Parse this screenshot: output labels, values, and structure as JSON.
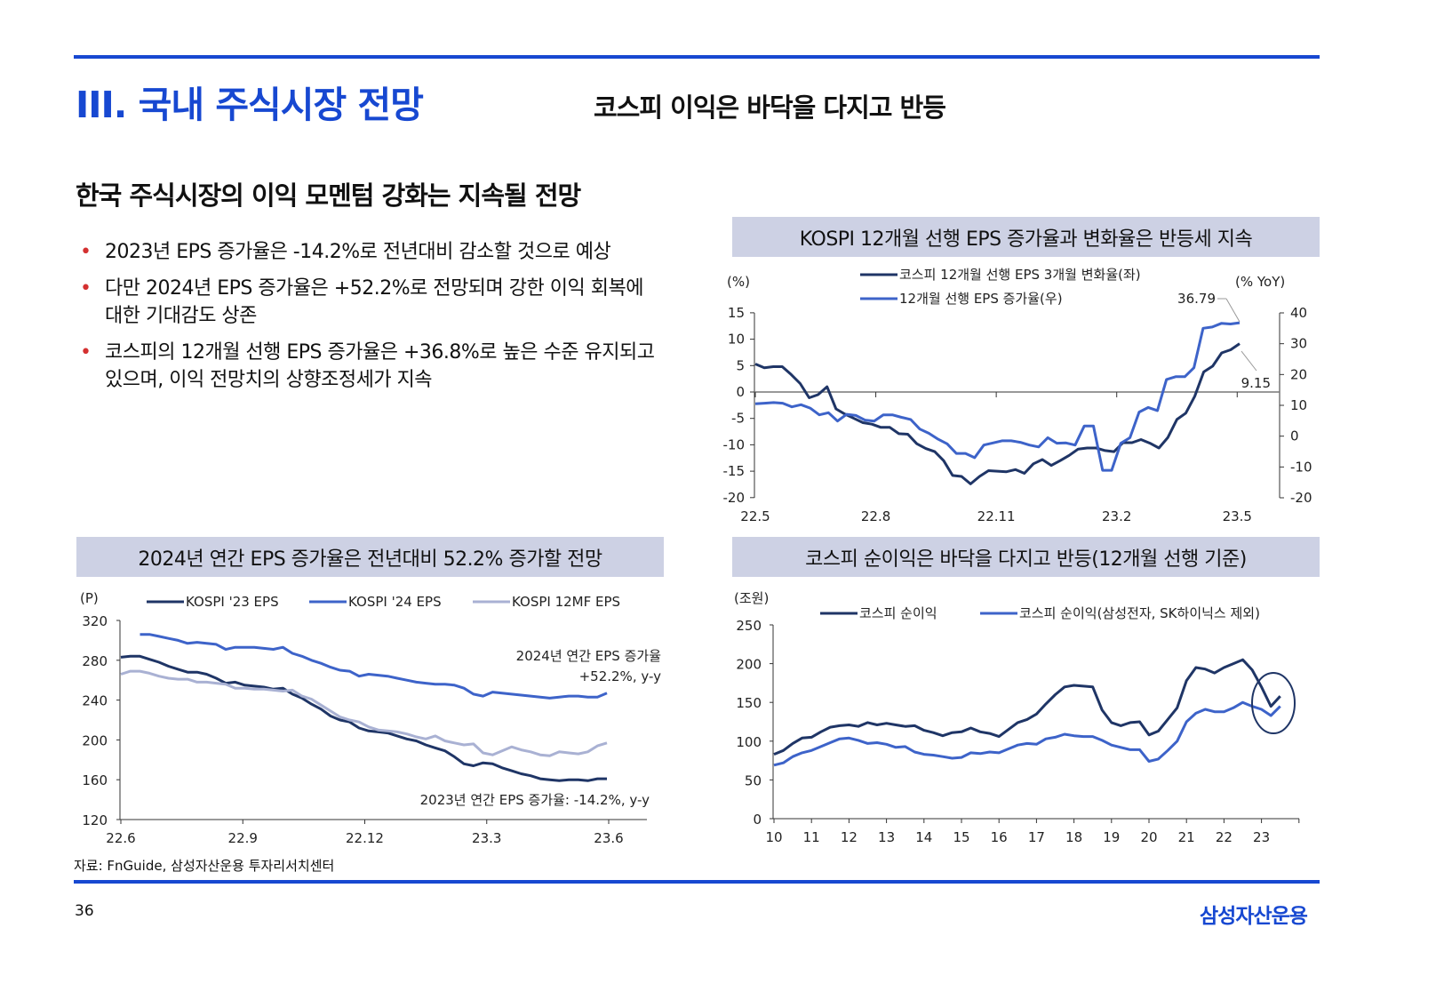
{
  "header": {
    "section_title": "III. 국내 주식시장 전망",
    "subtitle": "코스피 이익은 바닥을 다지고 반등"
  },
  "main": {
    "heading": "한국 주식시장의 이익 모멘텀 강화는 지속될 전망",
    "bullets": [
      "2023년 EPS 증가율은 -14.2%로 전년대비 감소할 것으로 예상",
      "다만 2024년 EPS 증가율은 +52.2%로 전망되며 강한 이익 회복에 대한 기대감도 상존",
      "코스피의 12개월 선행 EPS 증가율은 +36.8%로 높은 수준 유지되고 있으며, 이익 전망치의 상향조정세가 지속"
    ],
    "bullet_marker": "•"
  },
  "footer": {
    "source": "자료: FnGuide, 삼성자산운용 투자리서치센터",
    "page_number": "36",
    "logo": "삼성자산운용"
  },
  "colors": {
    "accent": "#1748d1",
    "dark_series": "#1f3566",
    "blue_series": "#3d63c9",
    "light_series": "#a9b1d3",
    "bar_bg": "#cdd1e4"
  },
  "chart_data": [
    {
      "type": "line",
      "title": "KOSPI 12개월 선행 EPS 증가율과 변화율은 반등세 지속",
      "ylabel": "(%)",
      "ylabel_right": "(% YoY)",
      "xticks": [
        "22.5",
        "22.8",
        "22.11",
        "23.2",
        "23.5"
      ],
      "ylim": [
        -20,
        15
      ],
      "yticks": [
        "15",
        "10",
        "5",
        "0",
        "-5",
        "-10",
        "-15",
        "-20"
      ],
      "ylim_right": [
        -20,
        40
      ],
      "yticks_right": [
        "40",
        "30",
        "20",
        "10",
        "0",
        "-10",
        "-20"
      ],
      "annotations": [
        "36.79",
        "9.15"
      ],
      "series": [
        {
          "name": "코스피 12개월 선행 EPS 3개월 변화율(좌)",
          "axis": "left",
          "color": "#1f3566",
          "values": [
            5.3,
            4.6,
            4.8,
            4.8,
            3.3,
            1.6,
            -1.1,
            -0.5,
            1.0,
            -3.2,
            -4.2,
            -5,
            -5.8,
            -6.1,
            -6.7,
            -6.7,
            -7.9,
            -8,
            -9.8,
            -10.7,
            -11.3,
            -13,
            -15.8,
            -16,
            -17.4,
            -16,
            -14.9,
            -15,
            -15.1,
            -14.7,
            -15.4,
            -13.6,
            -12.8,
            -13.9,
            -13,
            -12,
            -10.8,
            -10.6,
            -10.6,
            -11.1,
            -11.3,
            -9.6,
            -9.6,
            -9.0,
            -9.7,
            -10.6,
            -8.6,
            -5.2,
            -4.0,
            -0.8,
            3.8,
            4.9,
            7.4,
            8.0,
            9.15
          ]
        },
        {
          "name": "12개월 선행 EPS 증가율(우)",
          "axis": "right",
          "color": "#3d63c9",
          "values": [
            10.5,
            10.7,
            10.9,
            10.7,
            9.5,
            10.2,
            9.1,
            6.9,
            7.6,
            4.9,
            7.1,
            6.7,
            5.2,
            4.9,
            6.9,
            6.9,
            6.1,
            5.4,
            2.3,
            0.9,
            -1.0,
            -2.5,
            -5.6,
            -5.6,
            -7.0,
            -2.9,
            -2.2,
            -1.5,
            -1.5,
            -2.0,
            -2.9,
            -3.5,
            -0.5,
            -2.3,
            -2.2,
            -2.9,
            3.3,
            3.3,
            -11.1,
            -11.1,
            -2.3,
            -0.5,
            7.8,
            9.3,
            8.3,
            18.4,
            19.3,
            19.3,
            22.2,
            35.0,
            35.4,
            36.6,
            36.4,
            36.79
          ]
        }
      ]
    },
    {
      "type": "line",
      "title": "2024년 연간 EPS 증가율은 전년대비 52.2% 증가할 전망",
      "ylabel": "(P)",
      "xticks": [
        "22.6",
        "22.9",
        "22.12",
        "23.3",
        "23.6"
      ],
      "ylim": [
        120,
        320
      ],
      "yticks": [
        "320",
        "280",
        "240",
        "200",
        "160",
        "120"
      ],
      "annotations": [
        "2024년 연간 EPS 증가율",
        "+52.2%, y-y",
        "2023년 연간 EPS 증가율: -14.2%, y-y"
      ],
      "series": [
        {
          "name": "KOSPI '23 EPS",
          "color": "#1f3566",
          "start_index": 0,
          "values": [
            283,
            284,
            284,
            281,
            278,
            274,
            271,
            268,
            268,
            266,
            262,
            257,
            258,
            255,
            254,
            253,
            251,
            252,
            246,
            242,
            236,
            231,
            224,
            220,
            218,
            212,
            209,
            208,
            207,
            204,
            201,
            199,
            195,
            192,
            189,
            183,
            176,
            174,
            177,
            176,
            172,
            169,
            166,
            164,
            161,
            160,
            159,
            160,
            160,
            159,
            161,
            161
          ]
        },
        {
          "name": "KOSPI '24 EPS",
          "color": "#3d63c9",
          "start_index": 2,
          "values": [
            306,
            306,
            304,
            302,
            300,
            297,
            298,
            297,
            296,
            291,
            293,
            293,
            293,
            292,
            291,
            293,
            287,
            284,
            280,
            277,
            273,
            270,
            269,
            264,
            266,
            265,
            264,
            262,
            260,
            258,
            257,
            256,
            256,
            255,
            252,
            246,
            244,
            248,
            247,
            246,
            245,
            244,
            243,
            242,
            243,
            244,
            244,
            243,
            243,
            247
          ]
        },
        {
          "name": "KOSPI 12MF EPS",
          "color": "#a9b1d3",
          "start_index": 0,
          "values": [
            266,
            269,
            269,
            267,
            264,
            262,
            261,
            261,
            258,
            258,
            257,
            256,
            252,
            252,
            251,
            251,
            250,
            249,
            250,
            244,
            241,
            235,
            229,
            223,
            220,
            218,
            213,
            210,
            209,
            208,
            206,
            203,
            201,
            204,
            199,
            197,
            195,
            196,
            187,
            185,
            189,
            193,
            190,
            188,
            185,
            184,
            188,
            187,
            186,
            188,
            194,
            197
          ]
        }
      ]
    },
    {
      "type": "line",
      "title": "코스피 순이익은 바닥을 다지고 반등(12개월 선행 기준)",
      "ylabel": "(조원)",
      "xticks": [
        "10",
        "11",
        "12",
        "13",
        "14",
        "15",
        "16",
        "17",
        "18",
        "19",
        "20",
        "21",
        "22",
        "23"
      ],
      "ylim": [
        0,
        250
      ],
      "yticks": [
        "250",
        "200",
        "150",
        "100",
        "50",
        "0"
      ],
      "x_start": 10,
      "x_step": 0.25,
      "series": [
        {
          "name": "코스피 순이익",
          "color": "#1f3566",
          "values": [
            83,
            88,
            97,
            104,
            105,
            112,
            118,
            120,
            121,
            119,
            124,
            121,
            123,
            121,
            119,
            120,
            114,
            111,
            107,
            111,
            112,
            117,
            112,
            110,
            106,
            115,
            124,
            128,
            135,
            148,
            160,
            170,
            172,
            171,
            170,
            140,
            124,
            120,
            124,
            125,
            108,
            113,
            128,
            143,
            178,
            195,
            193,
            188,
            195,
            200,
            205,
            192,
            170,
            145,
            158
          ]
        },
        {
          "name": "코스피 순이익(삼성전자, SK하이닉스 제외)",
          "color": "#3d63c9",
          "values": [
            69,
            72,
            80,
            85,
            88,
            93,
            98,
            103,
            104,
            101,
            97,
            98,
            96,
            92,
            93,
            86,
            83,
            82,
            80,
            78,
            79,
            85,
            84,
            86,
            85,
            90,
            95,
            97,
            96,
            103,
            105,
            109,
            107,
            106,
            106,
            101,
            95,
            92,
            89,
            89,
            74,
            77,
            88,
            100,
            125,
            136,
            141,
            138,
            138,
            143,
            150,
            145,
            141,
            133,
            145
          ]
        }
      ]
    }
  ]
}
